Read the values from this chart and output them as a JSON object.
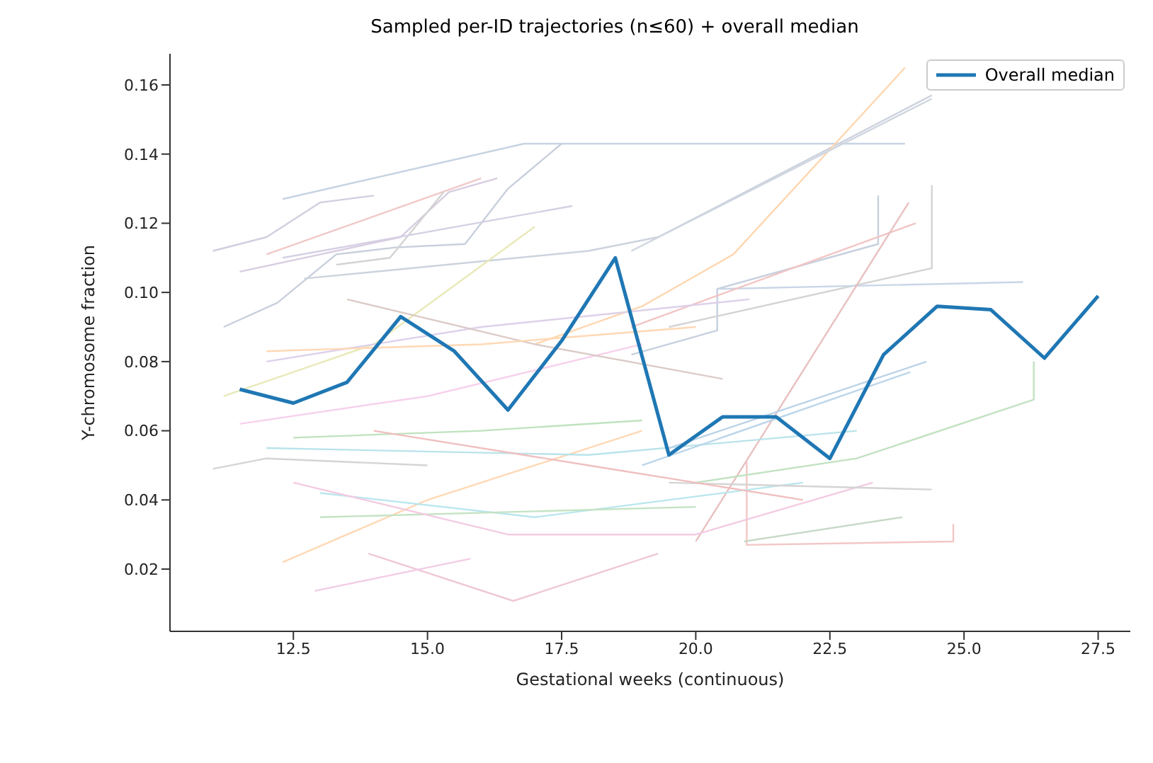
{
  "chart_data": {
    "type": "line",
    "title": "Sampled per-ID trajectories (n≤60) + overall median",
    "xlabel": "Gestational weeks (continuous)",
    "ylabel": "Y-chromosome fraction",
    "xlim": [
      10.2,
      28.1
    ],
    "ylim": [
      0.002,
      0.169
    ],
    "xticks": [
      12.5,
      {
        "value": 15,
        "label": "15.0"
      },
      17.5,
      {
        "value": 20,
        "label": "20.0"
      },
      22.5,
      {
        "value": 25,
        "label": "25.0"
      },
      27.5
    ],
    "yticks": [
      0.02,
      0.04,
      0.06,
      0.08,
      {
        "value": 0.1,
        "label": "0.10"
      },
      0.12,
      0.14,
      0.16
    ],
    "grid": false,
    "legend": "top right",
    "marker": "none",
    "line_style": "solid",
    "series": [
      {
        "color": "#c6d3e2",
        "x": [
          12.3,
          16.8,
          23.9
        ],
        "values": [
          0.127,
          0.143,
          0.143
        ]
      },
      {
        "color": "#cfcfe0",
        "x": [
          11.0,
          12.0,
          13.0,
          14.0
        ],
        "values": [
          0.112,
          0.116,
          0.126,
          0.128
        ]
      },
      {
        "color": "#d8cde0",
        "x": [
          11.5,
          14.5,
          15.4,
          16.3
        ],
        "values": [
          0.106,
          0.116,
          0.129,
          0.133
        ]
      },
      {
        "color": "#f0c8c8",
        "x": [
          12.0,
          16.0
        ],
        "values": [
          0.111,
          0.133
        ]
      },
      {
        "color": "#c8cfdc",
        "x": [
          11.2,
          12.2,
          13.3,
          14.4,
          15.7,
          16.5,
          17.5
        ],
        "values": [
          0.09,
          0.097,
          0.111,
          0.113,
          0.114,
          0.13,
          0.143
        ]
      },
      {
        "color": "#d3d3d3",
        "x": [
          13.3,
          14.3,
          15.3
        ],
        "values": [
          0.108,
          0.11,
          0.129
        ]
      },
      {
        "color": "#d6d0e4",
        "x": [
          12.3,
          17.7
        ],
        "values": [
          0.11,
          0.125
        ]
      },
      {
        "color": "#cdd3dd",
        "x": [
          12.7,
          18.0,
          19.3,
          24.4
        ],
        "values": [
          0.104,
          0.112,
          0.116,
          0.157
        ]
      },
      {
        "color": "#ffd6b0",
        "x": [
          17.0,
          19.0,
          20.7,
          22.6,
          23.9
        ],
        "values": [
          0.085,
          0.096,
          0.111,
          0.143,
          0.165
        ]
      },
      {
        "color": "#cfd6e0",
        "x": [
          18.8,
          24.4
        ],
        "values": [
          0.112,
          0.156
        ]
      },
      {
        "color": "#c6d0de",
        "x": [
          18.8,
          20.4,
          20.4,
          23.4,
          23.4
        ],
        "values": [
          0.082,
          0.089,
          0.101,
          0.114,
          0.128
        ]
      },
      {
        "color": "#d4d4d4",
        "x": [
          19.5,
          24.4,
          24.4
        ],
        "values": [
          0.09,
          0.107,
          0.131
        ]
      },
      {
        "color": "#c9d6e6",
        "x": [
          20.4,
          26.1
        ],
        "values": [
          0.101,
          0.103
        ]
      },
      {
        "color": "#f2c4c4",
        "x": [
          18.8,
          24.1
        ],
        "values": [
          0.09,
          0.12
        ]
      },
      {
        "color": "#e8c0c0",
        "x": [
          20.0,
          23.97
        ],
        "values": [
          0.028,
          0.126
        ]
      },
      {
        "color": "#f3c6c6",
        "x": [
          20.95,
          20.95,
          24.8,
          24.8
        ],
        "values": [
          0.051,
          0.027,
          0.028,
          0.033
        ]
      },
      {
        "color": "#c2e2c2",
        "x": [
          20.0,
          23.0,
          26.3,
          26.3
        ],
        "values": [
          0.045,
          0.052,
          0.069,
          0.08
        ]
      },
      {
        "color": "#efc8d6",
        "x": [
          13.9,
          16.6,
          19.3
        ],
        "values": [
          0.0245,
          0.0108,
          0.0245
        ]
      },
      {
        "color": "#f2cde6",
        "x": [
          12.9,
          15.8
        ],
        "values": [
          0.0137,
          0.023
        ]
      },
      {
        "color": "#ffd8b4",
        "x": [
          12.3,
          15.0,
          19.0
        ],
        "values": [
          0.022,
          0.04,
          0.06
        ]
      },
      {
        "color": "#b9e6ee",
        "x": [
          13.0,
          17.0,
          22.0
        ],
        "values": [
          0.042,
          0.035,
          0.045
        ]
      },
      {
        "color": "#c4e3c4",
        "x": [
          13.0,
          20.0
        ],
        "values": [
          0.035,
          0.038
        ]
      },
      {
        "color": "#f3cbe3",
        "x": [
          12.5,
          16.5,
          20.0,
          23.3
        ],
        "values": [
          0.045,
          0.03,
          0.03,
          0.045
        ]
      },
      {
        "color": "#d4d4d4",
        "x": [
          11.0,
          12.0,
          15.0
        ],
        "values": [
          0.049,
          0.052,
          0.05
        ]
      },
      {
        "color": "#b9e3ea",
        "x": [
          12.0,
          18.0,
          23.0
        ],
        "values": [
          0.055,
          0.053,
          0.06
        ]
      },
      {
        "color": "#d4d4d4",
        "x": [
          19.5,
          24.4
        ],
        "values": [
          0.045,
          0.043
        ]
      },
      {
        "color": "#c8d9c8",
        "x": [
          20.9,
          23.85
        ],
        "values": [
          0.028,
          0.035
        ]
      },
      {
        "color": "#bcd6ea",
        "x": [
          19.0,
          24.0
        ],
        "values": [
          0.05,
          0.077
        ]
      },
      {
        "color": "#bcd3e8",
        "x": [
          19.5,
          24.3
        ],
        "values": [
          0.055,
          0.08
        ]
      },
      {
        "color": "#e9e9b9",
        "x": [
          11.2,
          14.0,
          17.0
        ],
        "values": [
          0.07,
          0.085,
          0.119
        ]
      },
      {
        "color": "#ddd1ea",
        "x": [
          12.0,
          16.0,
          21.0
        ],
        "values": [
          0.08,
          0.09,
          0.098
        ]
      },
      {
        "color": "#f7d1ec",
        "x": [
          11.5,
          15.0,
          19.0
        ],
        "values": [
          0.062,
          0.07,
          0.085
        ]
      },
      {
        "color": "#dccbc7",
        "x": [
          13.5,
          17.0,
          20.5
        ],
        "values": [
          0.098,
          0.085,
          0.075
        ]
      },
      {
        "color": "#ffd8b4",
        "x": [
          12.0,
          16.0,
          20.0
        ],
        "values": [
          0.083,
          0.085,
          0.09
        ]
      },
      {
        "color": "#bfe2bf",
        "x": [
          12.5,
          16.0,
          19.0
        ],
        "values": [
          0.058,
          0.06,
          0.063
        ]
      },
      {
        "color": "#f0bfbf",
        "x": [
          14.0,
          18.0,
          22.0
        ],
        "values": [
          0.06,
          0.05,
          0.04
        ]
      },
      {
        "color": "#1f77b4",
        "name": "Overall median",
        "x": [
          11.5,
          12.5,
          13.5,
          14.5,
          15.5,
          16.5,
          17.5,
          18.5,
          19.5,
          20.5,
          21.5,
          22.5,
          23.5,
          24.5,
          25.5,
          26.5,
          27.5
        ],
        "values": [
          0.072,
          0.068,
          0.074,
          0.093,
          0.083,
          0.066,
          0.086,
          0.11,
          0.053,
          0.064,
          0.064,
          0.052,
          0.082,
          0.096,
          0.095,
          0.081,
          0.099
        ]
      }
    ]
  }
}
